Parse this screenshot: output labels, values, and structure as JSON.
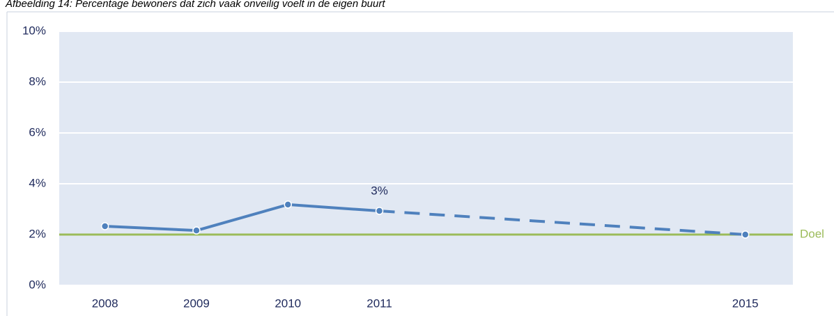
{
  "chart_data": {
    "type": "line",
    "title": "Afbeelding 14: Percentage bewoners dat zich vaak onveilig voelt in de eigen buurt",
    "x": [
      2008,
      2009,
      2010,
      2011,
      2015
    ],
    "xticks": [
      2008,
      2009,
      2010,
      2011,
      2015
    ],
    "xlim": [
      2007.5,
      2015.52
    ],
    "series": [
      {
        "color": "#4f81bd",
        "values": [
          2.33,
          2.16,
          3.18,
          2.93,
          2.0
        ],
        "value_labels": [
          null,
          null,
          null,
          "3%",
          null
        ],
        "dashed_from": 2011
      }
    ],
    "target": {
      "label": "Doel",
      "value": 2,
      "color": "#9bbb59"
    },
    "ylim": [
      0,
      10
    ],
    "yticks": [
      {
        "value": 0,
        "label": "0%"
      },
      {
        "value": 2,
        "label": "2%"
      },
      {
        "value": 4,
        "label": "4%"
      },
      {
        "value": 6,
        "label": "6%"
      },
      {
        "value": 8,
        "label": "8%"
      },
      {
        "value": 10,
        "label": "10%"
      }
    ],
    "grid": true
  }
}
